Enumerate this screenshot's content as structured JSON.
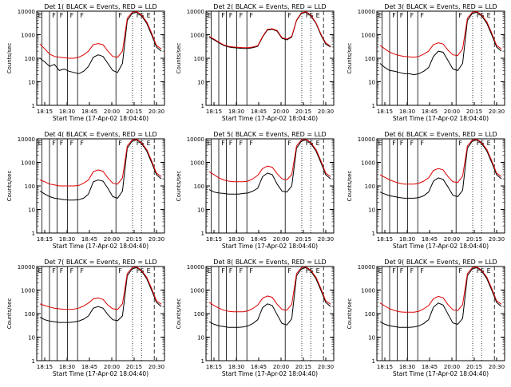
{
  "chart_data": [
    {
      "type": "line",
      "title": "Det 1( BLACK = Events, RED = LLD",
      "ylabel": "Counts/sec",
      "xlabel": "Start Time (17-Apr-02 18:04:40)",
      "x_ticks": [
        "18:15",
        "18:30",
        "18:45",
        "20:00",
        "20:15",
        "20:30"
      ],
      "y_ticks": [
        "1",
        "10",
        "100",
        "1000",
        "10000"
      ],
      "yscale": "log",
      "ylim": [
        1,
        10000
      ],
      "flags": [
        "E",
        "F",
        "F",
        "F",
        "F",
        "F",
        "FS",
        "E"
      ],
      "series": [
        {
          "color": "#000000",
          "values": [
            100,
            70,
            45,
            55,
            30,
            35,
            28,
            25,
            22,
            28,
            45,
            110,
            140,
            120,
            60,
            30,
            25,
            60,
            4000,
            8000,
            9000,
            6000,
            3000,
            1000,
            300,
            200
          ]
        },
        {
          "color": "#dd0000",
          "values": [
            400,
            250,
            150,
            120,
            110,
            105,
            100,
            100,
            110,
            140,
            200,
            380,
            420,
            380,
            200,
            120,
            110,
            200,
            5000,
            9000,
            9500,
            6500,
            3500,
            1200,
            350,
            250
          ]
        }
      ]
    },
    {
      "type": "line",
      "title": "Det 2( BLACK = Events, RED = LLD",
      "ylabel": "Counts/sec",
      "xlabel": "Start Time (17-Apr-02 18:04:40)",
      "x_ticks": [
        "18:15",
        "18:30",
        "18:45",
        "20:00",
        "20:15",
        "20:30"
      ],
      "y_ticks": [
        "1",
        "10",
        "100",
        "1000",
        "10000"
      ],
      "yscale": "log",
      "ylim": [
        1,
        10000
      ],
      "flags": [
        "E",
        "F",
        "F",
        "F",
        "F",
        "F",
        "FS",
        "E"
      ],
      "series": [
        {
          "color": "#000000",
          "values": [
            800,
            600,
            450,
            350,
            300,
            280,
            270,
            260,
            260,
            280,
            320,
            800,
            1600,
            1700,
            1400,
            700,
            600,
            800,
            4000,
            8000,
            9000,
            6000,
            3000,
            1000,
            400,
            300
          ]
        },
        {
          "color": "#dd0000",
          "values": [
            850,
            650,
            480,
            370,
            320,
            300,
            290,
            280,
            280,
            300,
            340,
            850,
            1700,
            1800,
            1500,
            750,
            650,
            850,
            4200,
            8500,
            9500,
            6500,
            3200,
            1100,
            450,
            320
          ]
        }
      ]
    },
    {
      "type": "line",
      "title": "Det 3( BLACK = Events, RED = LLD",
      "ylabel": "Counts/sec",
      "xlabel": "Start Time (17-Apr-02 18:04:40)",
      "x_ticks": [
        "18:15",
        "18:30",
        "18:45",
        "20:00",
        "20:15",
        "20:30"
      ],
      "y_ticks": [
        "1",
        "10",
        "100",
        "1000",
        "10000"
      ],
      "yscale": "log",
      "ylim": [
        1,
        10000
      ],
      "flags": [
        "E",
        "F",
        "F",
        "F",
        "F",
        "F",
        "FS",
        "E"
      ],
      "series": [
        {
          "color": "#000000",
          "values": [
            60,
            40,
            30,
            28,
            25,
            22,
            22,
            20,
            22,
            28,
            40,
            120,
            200,
            180,
            80,
            35,
            30,
            60,
            4000,
            8000,
            9000,
            6000,
            3000,
            1000,
            300,
            200
          ]
        },
        {
          "color": "#dd0000",
          "values": [
            350,
            250,
            180,
            150,
            130,
            120,
            115,
            110,
            120,
            150,
            200,
            380,
            450,
            400,
            220,
            140,
            130,
            250,
            5000,
            9000,
            9500,
            6500,
            3500,
            1200,
            350,
            250
          ]
        }
      ]
    },
    {
      "type": "line",
      "title": "Det 4( BLACK = Events, RED = LLD",
      "ylabel": "Counts/sec",
      "xlabel": "Start Time (17-Apr-02 18:04:40)",
      "x_ticks": [
        "18:15",
        "18:30",
        "18:45",
        "20:00",
        "20:15",
        "20:30"
      ],
      "y_ticks": [
        "1",
        "10",
        "100",
        "1000",
        "10000"
      ],
      "yscale": "log",
      "ylim": [
        1,
        10000
      ],
      "flags": [
        "E",
        "F",
        "F",
        "F",
        "F",
        "F",
        "FS",
        "E"
      ],
      "series": [
        {
          "color": "#000000",
          "values": [
            60,
            45,
            35,
            30,
            28,
            26,
            25,
            25,
            26,
            30,
            45,
            150,
            180,
            160,
            80,
            35,
            30,
            60,
            4000,
            8000,
            9000,
            6000,
            3000,
            1000,
            300,
            200
          ]
        },
        {
          "color": "#dd0000",
          "values": [
            180,
            150,
            120,
            110,
            100,
            100,
            100,
            100,
            105,
            130,
            180,
            400,
            480,
            420,
            220,
            130,
            120,
            220,
            5000,
            9000,
            9500,
            6500,
            3500,
            1200,
            350,
            250
          ]
        }
      ]
    },
    {
      "type": "line",
      "title": "Det 5( BLACK = Events, RED = LLD",
      "ylabel": "Counts/sec",
      "xlabel": "Start Time (17-Apr-02 18:04:40)",
      "x_ticks": [
        "18:15",
        "18:30",
        "18:45",
        "20:00",
        "20:15",
        "20:30"
      ],
      "y_ticks": [
        "1",
        "10",
        "100",
        "1000",
        "10000"
      ],
      "yscale": "log",
      "ylim": [
        1,
        10000
      ],
      "flags": [
        "E",
        "F",
        "F",
        "F",
        "F",
        "F",
        "FS",
        "E"
      ],
      "series": [
        {
          "color": "#000000",
          "values": [
            70,
            55,
            50,
            48,
            45,
            45,
            45,
            48,
            50,
            60,
            80,
            250,
            350,
            300,
            120,
            60,
            55,
            100,
            4000,
            8000,
            9000,
            6000,
            3000,
            1000,
            300,
            200
          ]
        },
        {
          "color": "#dd0000",
          "values": [
            400,
            300,
            220,
            180,
            160,
            150,
            150,
            150,
            160,
            200,
            280,
            550,
            700,
            620,
            330,
            200,
            180,
            300,
            5000,
            9000,
            9500,
            6500,
            3500,
            1200,
            350,
            250
          ]
        }
      ]
    },
    {
      "type": "line",
      "title": "Det 6( BLACK = Events, RED = LLD",
      "ylabel": "Counts/sec",
      "xlabel": "Start Time (17-Apr-02 18:04:40)",
      "x_ticks": [
        "18:15",
        "18:30",
        "18:45",
        "20:00",
        "20:15",
        "20:30"
      ],
      "y_ticks": [
        "1",
        "10",
        "100",
        "1000",
        "10000"
      ],
      "yscale": "log",
      "ylim": [
        1,
        10000
      ],
      "flags": [
        "E",
        "F",
        "F",
        "F",
        "F",
        "F",
        "FS",
        "E"
      ],
      "series": [
        {
          "color": "#000000",
          "values": [
            55,
            45,
            38,
            35,
            32,
            30,
            30,
            30,
            32,
            38,
            55,
            160,
            220,
            190,
            90,
            40,
            35,
            65,
            4000,
            8000,
            9000,
            6000,
            3000,
            1000,
            300,
            200
          ]
        },
        {
          "color": "#dd0000",
          "values": [
            300,
            230,
            180,
            150,
            130,
            120,
            120,
            120,
            130,
            160,
            220,
            450,
            550,
            480,
            250,
            150,
            140,
            260,
            5000,
            9000,
            9500,
            6500,
            3500,
            1200,
            350,
            250
          ]
        }
      ]
    },
    {
      "type": "line",
      "title": "Det 7( BLACK = Events, RED = LLD",
      "ylabel": "Counts/sec",
      "xlabel": "Start Time (17-Apr-02 18:04:40)",
      "x_ticks": [
        "18:15",
        "18:30",
        "18:45",
        "20:00",
        "20:15",
        "20:30"
      ],
      "y_ticks": [
        "1",
        "10",
        "100",
        "1000",
        "10000"
      ],
      "yscale": "log",
      "ylim": [
        1,
        10000
      ],
      "flags": [
        "E",
        "F",
        "F",
        "F",
        "F",
        "F",
        "FS",
        "E"
      ],
      "series": [
        {
          "color": "#000000",
          "values": [
            70,
            55,
            48,
            45,
            42,
            42,
            42,
            44,
            48,
            58,
            80,
            170,
            200,
            170,
            90,
            55,
            50,
            80,
            4000,
            8000,
            9000,
            6000,
            3000,
            1000,
            300,
            200
          ]
        },
        {
          "color": "#dd0000",
          "values": [
            260,
            220,
            190,
            170,
            160,
            150,
            150,
            155,
            170,
            210,
            280,
            420,
            460,
            400,
            230,
            160,
            150,
            260,
            5000,
            9000,
            9500,
            6500,
            3500,
            1200,
            350,
            250
          ]
        }
      ]
    },
    {
      "type": "line",
      "title": "Det 8( BLACK = Events, RED = LLD",
      "ylabel": "Counts/sec",
      "xlabel": "Start Time (17-Apr-02 18:04:40)",
      "x_ticks": [
        "18:15",
        "18:30",
        "18:45",
        "20:00",
        "20:15",
        "20:30"
      ],
      "y_ticks": [
        "1",
        "10",
        "100",
        "1000",
        "10000"
      ],
      "yscale": "log",
      "ylim": [
        1,
        10000
      ],
      "flags": [
        "E",
        "F",
        "F",
        "F",
        "F",
        "F",
        "FS",
        "E"
      ],
      "series": [
        {
          "color": "#000000",
          "values": [
            45,
            35,
            30,
            28,
            26,
            26,
            26,
            27,
            30,
            38,
            55,
            180,
            260,
            220,
            90,
            38,
            33,
            60,
            4000,
            8000,
            9000,
            6000,
            3000,
            1000,
            300,
            200
          ]
        },
        {
          "color": "#dd0000",
          "values": [
            300,
            220,
            170,
            140,
            125,
            120,
            120,
            120,
            130,
            165,
            230,
            450,
            560,
            490,
            250,
            150,
            140,
            250,
            5000,
            9000,
            9500,
            6500,
            3500,
            1200,
            350,
            250
          ]
        }
      ]
    },
    {
      "type": "line",
      "title": "Det 9( BLACK = Events, RED = LLD",
      "ylabel": "Counts/sec",
      "xlabel": "Start Time (17-Apr-02 18:04:40)",
      "x_ticks": [
        "18:15",
        "18:30",
        "18:45",
        "20:00",
        "20:15",
        "20:30"
      ],
      "y_ticks": [
        "1",
        "10",
        "100",
        "1000",
        "10000"
      ],
      "yscale": "log",
      "ylim": [
        1,
        10000
      ],
      "flags": [
        "E",
        "F",
        "F",
        "F",
        "F",
        "F",
        "FS",
        "E"
      ],
      "series": [
        {
          "color": "#000000",
          "values": [
            45,
            35,
            30,
            28,
            26,
            26,
            26,
            27,
            30,
            38,
            55,
            190,
            280,
            230,
            95,
            40,
            35,
            62,
            4000,
            8000,
            9000,
            6000,
            3000,
            1000,
            300,
            200
          ]
        },
        {
          "color": "#dd0000",
          "values": [
            280,
            210,
            160,
            135,
            120,
            115,
            115,
            115,
            125,
            160,
            220,
            430,
            540,
            470,
            240,
            145,
            135,
            240,
            5000,
            9000,
            9500,
            6500,
            3500,
            1200,
            350,
            250
          ]
        }
      ]
    }
  ]
}
